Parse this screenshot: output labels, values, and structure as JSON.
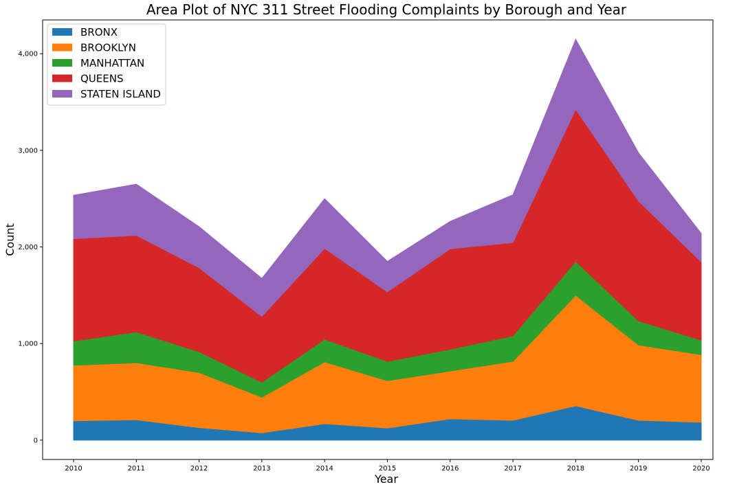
{
  "chart_data": {
    "type": "area",
    "stacked": true,
    "title": "Area Plot of NYC 311 Street Flooding Complaints by Borough and Year",
    "xlabel": "Year",
    "ylabel": "Count",
    "x": [
      "2010",
      "2011",
      "2012",
      "2013",
      "2014",
      "2015",
      "2016",
      "2017",
      "2018",
      "2019",
      "2020"
    ],
    "yticks": [
      0,
      1000,
      2000,
      3000,
      4000
    ],
    "ytick_labels": [
      "0",
      "1,000",
      "2,000",
      "3,000",
      "4,000"
    ],
    "ylim": [
      -200,
      4350
    ],
    "grid": false,
    "legend_position": "top-left",
    "series": [
      {
        "name": "BRONX",
        "color": "#1f77b4",
        "values": [
          200,
          210,
          130,
          75,
          170,
          125,
          220,
          205,
          355,
          205,
          185
        ]
      },
      {
        "name": "BROOKLYN",
        "color": "#ff7f0e",
        "values": [
          575,
          590,
          570,
          370,
          640,
          490,
          495,
          610,
          1145,
          780,
          700
        ]
      },
      {
        "name": "MANHATTAN",
        "color": "#2ca02c",
        "values": [
          250,
          320,
          215,
          155,
          235,
          200,
          225,
          265,
          350,
          250,
          150
        ]
      },
      {
        "name": "QUEENS",
        "color": "#d62728",
        "values": [
          1060,
          1000,
          870,
          680,
          940,
          720,
          1040,
          965,
          1575,
          1240,
          810
        ]
      },
      {
        "name": "STATEN ISLAND",
        "color": "#9467bd",
        "values": [
          450,
          530,
          425,
          395,
          515,
          315,
          285,
          495,
          725,
          500,
          295
        ]
      }
    ]
  }
}
